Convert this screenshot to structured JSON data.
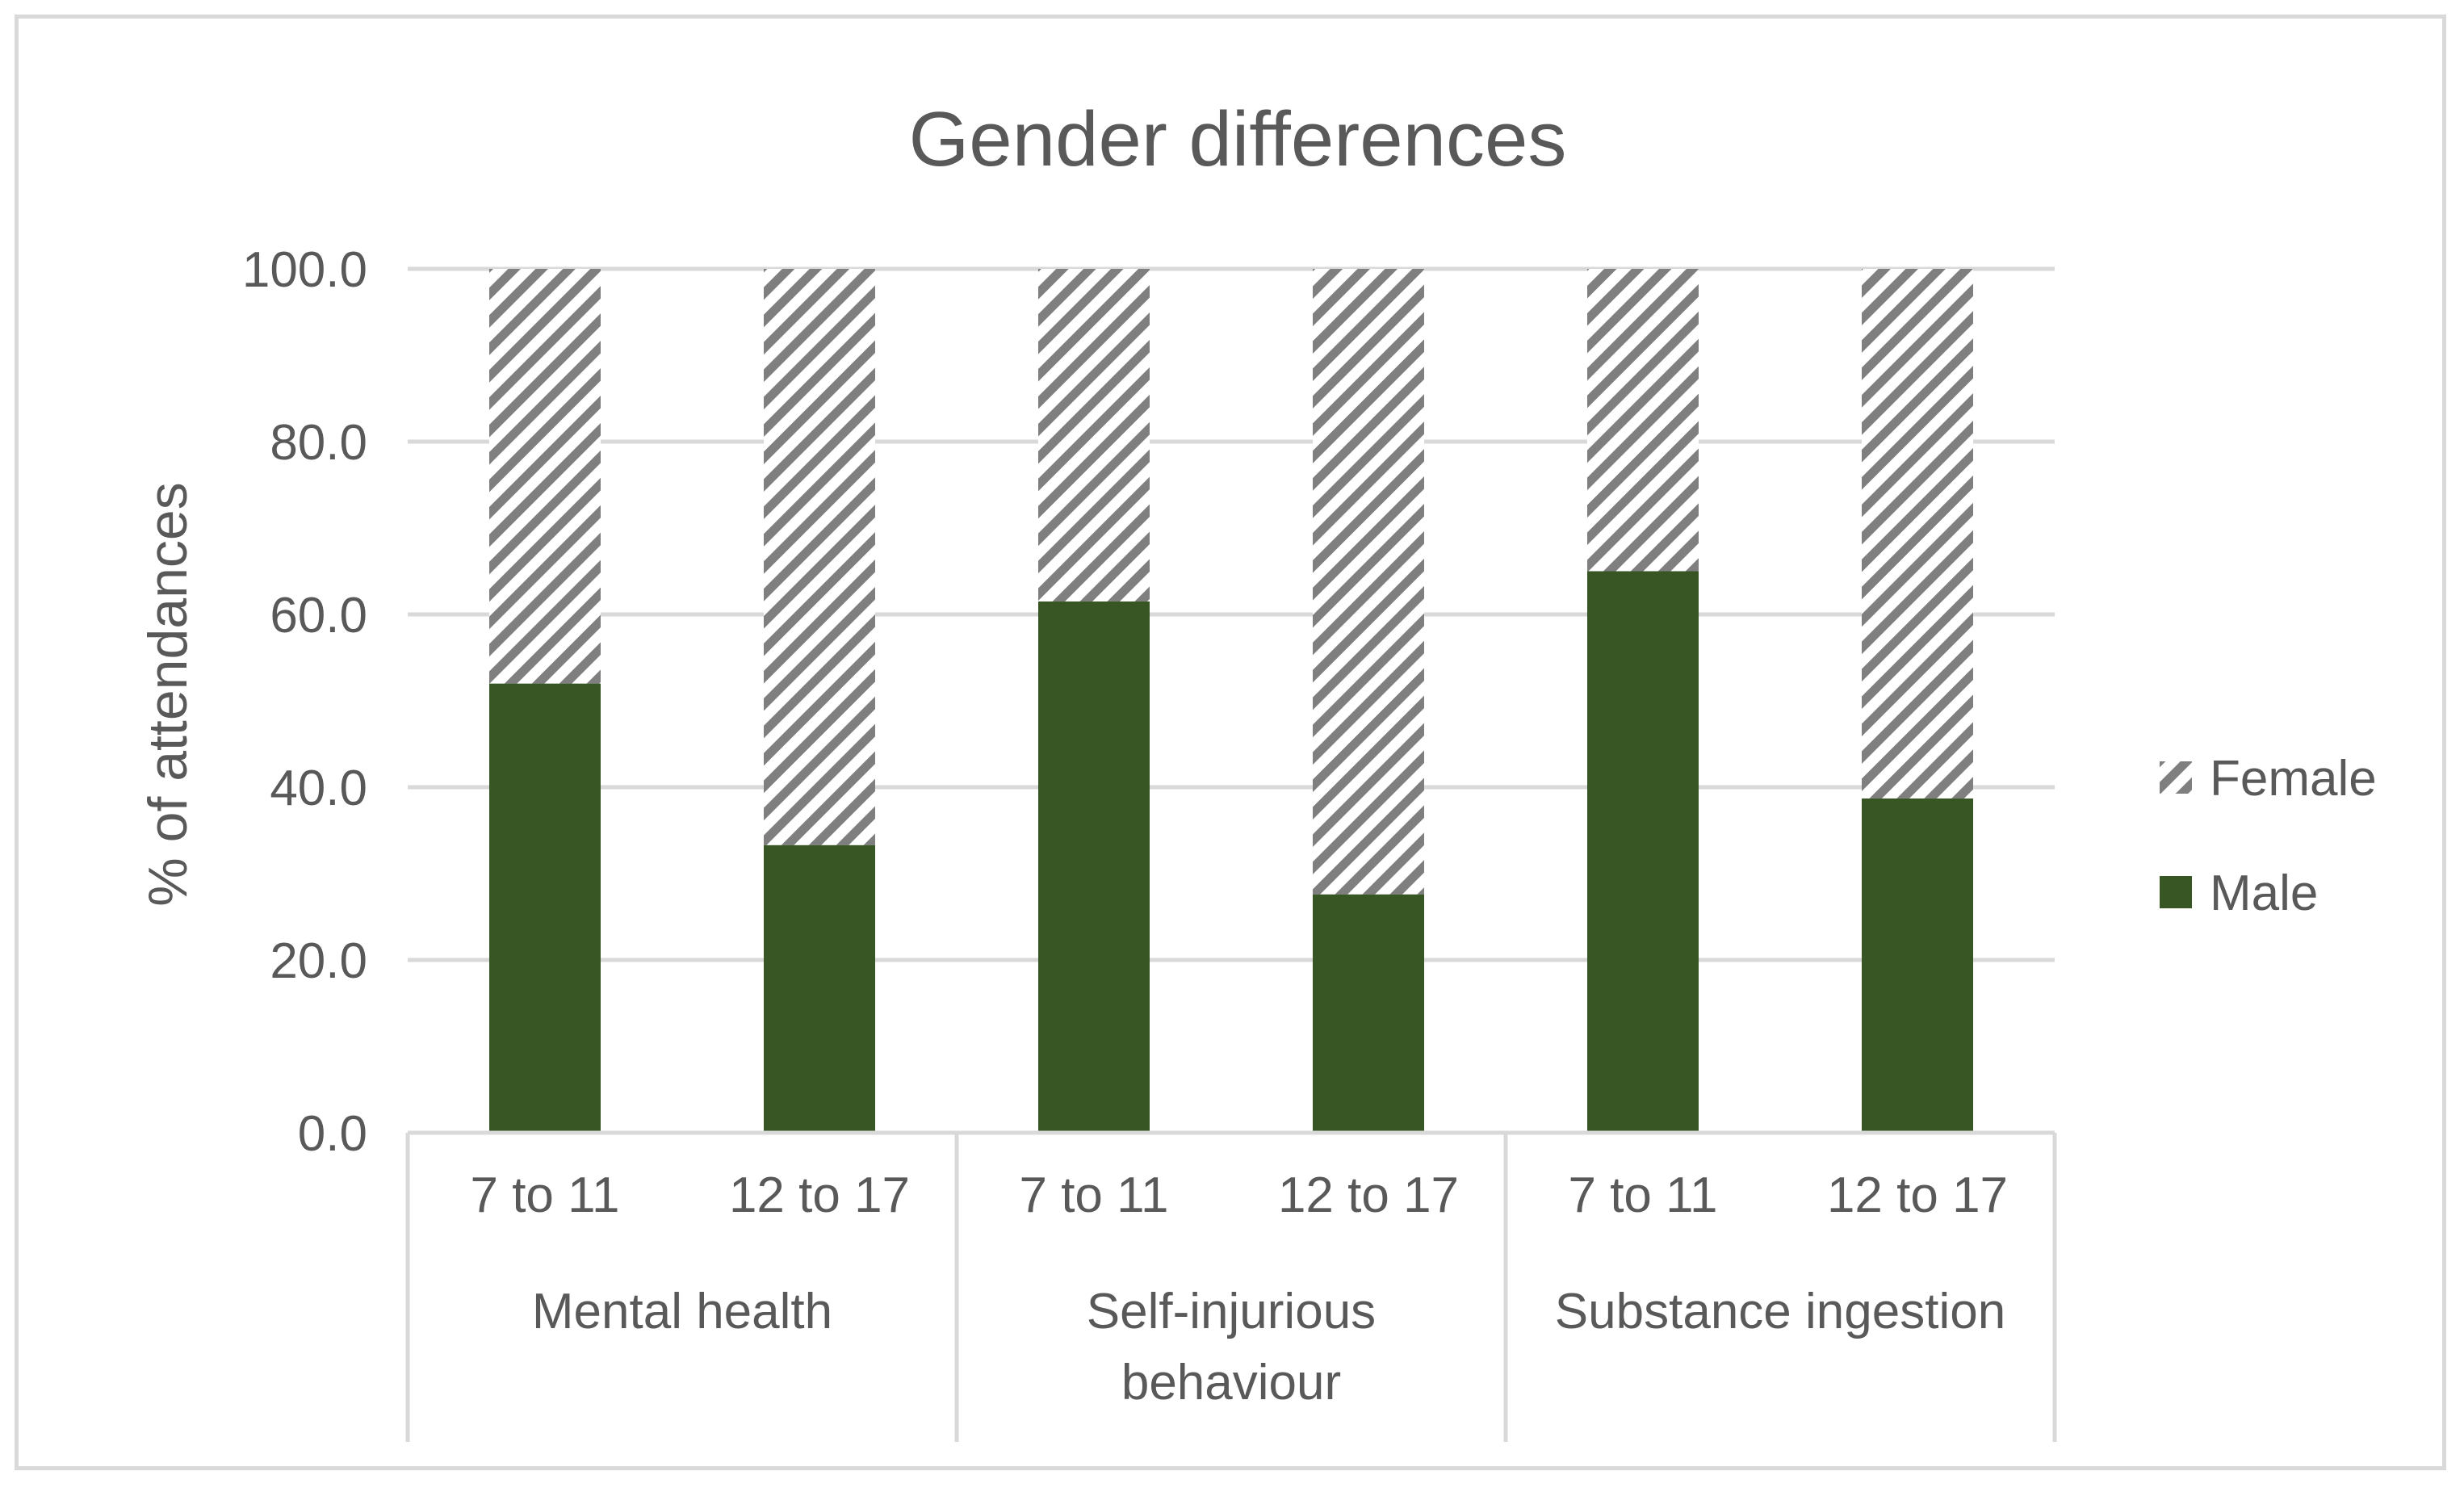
{
  "chart_data": {
    "type": "bar",
    "stacked": true,
    "title": "Gender differences",
    "xlabel": "",
    "ylabel": "% of attendances",
    "ylim": [
      0,
      100
    ],
    "yticks": [
      0,
      20,
      40,
      60,
      80,
      100
    ],
    "ytick_labels": [
      "0.0",
      "20.0",
      "40.0",
      "60.0",
      "80.0",
      "100.0"
    ],
    "grid": true,
    "legend_position": "right",
    "groups": [
      {
        "label": "Mental health",
        "label_lines": [
          "Mental health"
        ]
      },
      {
        "label": "Self-injurious behaviour",
        "label_lines": [
          "Self-injurious",
          "behaviour"
        ]
      },
      {
        "label": "Substance ingestion",
        "label_lines": [
          "Substance ingestion"
        ]
      }
    ],
    "categories": [
      "7 to 11",
      "12 to 17",
      "7 to 11",
      "12 to 17",
      "7 to 11",
      "12 to 17"
    ],
    "series": [
      {
        "name": "Male",
        "values": [
          52.0,
          33.3,
          61.5,
          27.6,
          65.0,
          38.7
        ]
      },
      {
        "name": "Female",
        "values": [
          48.0,
          66.7,
          38.5,
          72.4,
          35.0,
          61.3
        ]
      }
    ],
    "legend": [
      "Female",
      "Male"
    ]
  },
  "colors": {
    "male": "#375623",
    "female_stripe": "#7f7f7f",
    "grid": "#d9d9d9",
    "axis_text": "#595959",
    "title_text": "#595959"
  }
}
